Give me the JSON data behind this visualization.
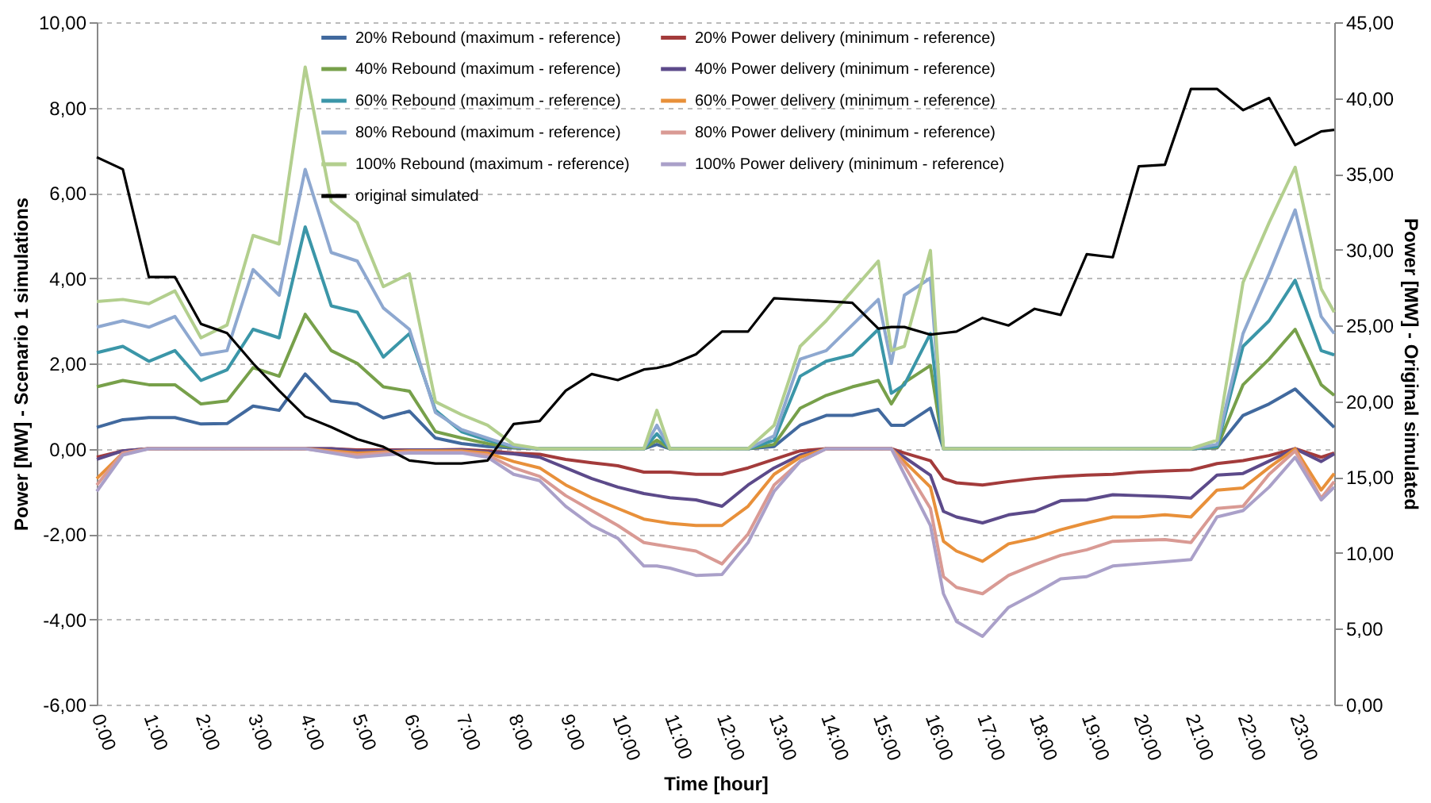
{
  "chart_data": {
    "type": "line",
    "xlabel": "Time [hour]",
    "ylabel": "Power [MW] - Scenario 1 simulations",
    "y2label": "Power [MW] - Original simulated",
    "x": [
      0,
      0.5,
      1,
      1.5,
      2,
      2.5,
      3,
      3.5,
      4,
      4.5,
      5,
      5.5,
      6,
      6.5,
      7,
      7.5,
      8,
      8.5,
      9,
      9.5,
      10,
      10.5,
      10.75,
      11,
      11.5,
      12,
      12.5,
      13,
      13.5,
      14,
      14.5,
      15,
      15.25,
      15.5,
      16,
      16.25,
      16.5,
      17,
      17.5,
      18,
      18.5,
      19,
      19.5,
      20,
      20.5,
      21,
      21.5,
      22,
      22.5,
      23,
      23.5,
      23.75
    ],
    "series": [
      {
        "name": "20% Rebound (maximum - reference)",
        "color": "#41699e",
        "values": [
          0.5,
          0.68,
          0.73,
          0.73,
          0.58,
          0.59,
          1.0,
          0.9,
          1.75,
          1.12,
          1.05,
          0.72,
          0.88,
          0.25,
          0.12,
          0.05,
          0.02,
          0,
          0,
          0,
          0,
          0,
          0.1,
          0,
          0,
          0,
          0,
          0.05,
          0.55,
          0.78,
          0.78,
          0.92,
          0.55,
          0.55,
          0.95,
          0,
          0,
          0,
          0,
          0,
          0,
          0,
          0,
          0,
          0,
          0,
          0.02,
          0.78,
          1.05,
          1.4,
          0.8,
          0.5
        ]
      },
      {
        "name": "20% Power delivery (minimum - reference)",
        "color": "#a33b3b",
        "values": [
          -0.2,
          -0.05,
          0,
          0,
          0,
          0,
          0,
          0,
          0,
          0,
          -0.03,
          -0.03,
          -0.03,
          -0.03,
          -0.02,
          -0.05,
          -0.1,
          -0.13,
          -0.25,
          -0.33,
          -0.4,
          -0.55,
          -0.55,
          -0.55,
          -0.6,
          -0.6,
          -0.45,
          -0.25,
          -0.05,
          0,
          0,
          0,
          0,
          -0.1,
          -0.28,
          -0.7,
          -0.8,
          -0.85,
          -0.77,
          -0.7,
          -0.65,
          -0.62,
          -0.6,
          -0.55,
          -0.52,
          -0.5,
          -0.35,
          -0.28,
          -0.16,
          0,
          -0.2,
          -0.1
        ]
      },
      {
        "name": "40% Rebound (maximum - reference)",
        "color": "#77a04a",
        "values": [
          1.45,
          1.6,
          1.5,
          1.5,
          1.05,
          1.12,
          1.9,
          1.7,
          3.15,
          2.3,
          2.0,
          1.45,
          1.35,
          0.4,
          0.25,
          0.12,
          0.03,
          0,
          0,
          0,
          0,
          0,
          0.2,
          0,
          0,
          0,
          0,
          0.1,
          0.95,
          1.25,
          1.45,
          1.6,
          1.05,
          1.55,
          1.95,
          0,
          0,
          0,
          0,
          0,
          0,
          0,
          0,
          0,
          0,
          0,
          0.03,
          1.5,
          2.1,
          2.8,
          1.5,
          1.25
        ]
      },
      {
        "name": "40% Power delivery (minimum - reference)",
        "color": "#5c4a8a",
        "values": [
          -0.25,
          -0.05,
          0,
          0,
          0,
          0,
          0,
          0,
          0,
          0,
          -0.05,
          -0.05,
          -0.03,
          -0.03,
          -0.03,
          -0.08,
          -0.12,
          -0.2,
          -0.45,
          -0.7,
          -0.9,
          -1.05,
          -1.1,
          -1.15,
          -1.2,
          -1.35,
          -0.85,
          -0.45,
          -0.15,
          0,
          0,
          0,
          0,
          -0.2,
          -0.62,
          -1.47,
          -1.6,
          -1.74,
          -1.55,
          -1.47,
          -1.22,
          -1.2,
          -1.08,
          -1.1,
          -1.12,
          -1.16,
          -0.62,
          -0.58,
          -0.29,
          0,
          -0.3,
          -0.12
        ]
      },
      {
        "name": "60% Rebound (maximum - reference)",
        "color": "#3b96a8",
        "values": [
          2.25,
          2.4,
          2.05,
          2.3,
          1.6,
          1.85,
          2.8,
          2.6,
          5.2,
          3.35,
          3.2,
          2.15,
          2.7,
          0.9,
          0.4,
          0.2,
          0.05,
          0,
          0,
          0,
          0,
          0,
          0.35,
          0,
          0,
          0,
          0,
          0.2,
          1.7,
          2.05,
          2.2,
          2.8,
          1.3,
          1.5,
          2.7,
          0,
          0,
          0,
          0,
          0,
          0,
          0,
          0,
          0,
          0,
          0,
          0.05,
          2.4,
          3.0,
          3.95,
          2.3,
          2.2
        ]
      },
      {
        "name": "60% Power delivery (minimum - reference)",
        "color": "#e8903a",
        "values": [
          -0.7,
          -0.1,
          0,
          0,
          0,
          0,
          0,
          0,
          0,
          -0.05,
          -0.1,
          -0.08,
          -0.05,
          -0.05,
          -0.05,
          -0.1,
          -0.3,
          -0.45,
          -0.85,
          -1.15,
          -1.4,
          -1.65,
          -1.7,
          -1.75,
          -1.8,
          -1.8,
          -1.35,
          -0.6,
          -0.2,
          0,
          0,
          0,
          0,
          -0.3,
          -0.9,
          -2.17,
          -2.4,
          -2.64,
          -2.23,
          -2.1,
          -1.9,
          -1.74,
          -1.6,
          -1.6,
          -1.55,
          -1.6,
          -0.97,
          -0.92,
          -0.44,
          0,
          -0.97,
          -0.58
        ]
      },
      {
        "name": "80% Rebound (maximum - reference)",
        "color": "#8ea8d0",
        "values": [
          2.85,
          3.0,
          2.85,
          3.1,
          2.2,
          2.3,
          4.2,
          3.6,
          6.55,
          4.6,
          4.4,
          3.3,
          2.8,
          0.85,
          0.45,
          0.25,
          0.05,
          0,
          0,
          0,
          0,
          0,
          0.55,
          0,
          0,
          0,
          0,
          0.3,
          2.1,
          2.3,
          2.9,
          3.5,
          2.0,
          3.6,
          4.0,
          0,
          0,
          0,
          0,
          0,
          0,
          0,
          0,
          0,
          0,
          0,
          0.1,
          2.7,
          4.1,
          5.6,
          3.1,
          2.7
        ]
      },
      {
        "name": "80% Power delivery (minimum - reference)",
        "color": "#d99a94",
        "values": [
          -0.85,
          -0.1,
          0,
          0,
          0,
          0,
          0,
          0,
          0,
          -0.08,
          -0.15,
          -0.1,
          -0.08,
          -0.08,
          -0.08,
          -0.15,
          -0.45,
          -0.65,
          -1.1,
          -1.45,
          -1.8,
          -2.2,
          -2.25,
          -2.3,
          -2.4,
          -2.7,
          -2.0,
          -0.85,
          -0.3,
          0,
          0,
          0,
          0,
          -0.4,
          -1.4,
          -3.0,
          -3.25,
          -3.4,
          -2.97,
          -2.72,
          -2.5,
          -2.37,
          -2.17,
          -2.15,
          -2.13,
          -2.2,
          -1.4,
          -1.35,
          -0.6,
          -0.05,
          -1.16,
          -0.77
        ]
      },
      {
        "name": "100% Rebound (maximum - reference)",
        "color": "#b3cf8e",
        "values": [
          3.45,
          3.5,
          3.4,
          3.7,
          2.6,
          2.9,
          5.0,
          4.8,
          8.95,
          5.8,
          5.3,
          3.8,
          4.1,
          1.1,
          0.8,
          0.55,
          0.1,
          0,
          0,
          0,
          0,
          0,
          0.9,
          0,
          0,
          0,
          0,
          0.55,
          2.4,
          3.0,
          3.7,
          4.4,
          2.3,
          2.4,
          4.65,
          0,
          0,
          0,
          0,
          0,
          0,
          0,
          0,
          0,
          0,
          0,
          0.2,
          3.9,
          5.3,
          6.6,
          3.75,
          3.2
        ]
      },
      {
        "name": "100% Power delivery (minimum - reference)",
        "color": "#aaa0c9",
        "values": [
          -1.0,
          -0.15,
          0,
          0,
          0,
          0,
          0,
          0,
          0,
          -0.1,
          -0.2,
          -0.15,
          -0.1,
          -0.1,
          -0.1,
          -0.2,
          -0.6,
          -0.75,
          -1.35,
          -1.8,
          -2.1,
          -2.75,
          -2.75,
          -2.8,
          -2.97,
          -2.95,
          -2.2,
          -1.0,
          -0.3,
          0,
          0,
          0,
          0,
          -0.6,
          -1.8,
          -3.4,
          -4.05,
          -4.4,
          -3.72,
          -3.4,
          -3.05,
          -3.0,
          -2.75,
          -2.7,
          -2.65,
          -2.6,
          -1.6,
          -1.45,
          -0.9,
          -0.2,
          -1.2,
          -0.9
        ]
      },
      {
        "name": "original simulated",
        "color": "#000000",
        "axis": "y2",
        "values": [
          36.1,
          35.3,
          28.2,
          28.2,
          25.1,
          24.5,
          22.5,
          20.7,
          19.0,
          18.3,
          17.5,
          17.0,
          16.1,
          15.9,
          15.9,
          16.1,
          18.5,
          18.7,
          20.7,
          21.8,
          21.4,
          22.1,
          22.2,
          22.4,
          23.1,
          24.6,
          24.6,
          26.8,
          26.7,
          26.6,
          26.5,
          24.8,
          24.9,
          24.9,
          24.4,
          24.5,
          24.6,
          25.5,
          25.0,
          26.1,
          25.7,
          29.7,
          29.5,
          35.5,
          35.6,
          40.6,
          40.6,
          39.2,
          40.0,
          36.9,
          37.8,
          37.9
        ]
      }
    ],
    "xlim": [
      0,
      23.75
    ],
    "xticks": [
      {
        "value": 0,
        "label": "0:00"
      },
      {
        "value": 1,
        "label": "1:00"
      },
      {
        "value": 2,
        "label": "2:00"
      },
      {
        "value": 3,
        "label": "3:00"
      },
      {
        "value": 4,
        "label": "4:00"
      },
      {
        "value": 5,
        "label": "5:00"
      },
      {
        "value": 6,
        "label": "6:00"
      },
      {
        "value": 7,
        "label": "7:00"
      },
      {
        "value": 8,
        "label": "8:00"
      },
      {
        "value": 9,
        "label": "9:00"
      },
      {
        "value": 10,
        "label": "10:00"
      },
      {
        "value": 11,
        "label": "11:00"
      },
      {
        "value": 12,
        "label": "12:00"
      },
      {
        "value": 13,
        "label": "13:00"
      },
      {
        "value": 14,
        "label": "14:00"
      },
      {
        "value": 15,
        "label": "15:00"
      },
      {
        "value": 16,
        "label": "16:00"
      },
      {
        "value": 17,
        "label": "17:00"
      },
      {
        "value": 18,
        "label": "18:00"
      },
      {
        "value": 19,
        "label": "19:00"
      },
      {
        "value": 20,
        "label": "20:00"
      },
      {
        "value": 21,
        "label": "21:00"
      },
      {
        "value": 22,
        "label": "22:00"
      },
      {
        "value": 23,
        "label": "23:00"
      }
    ],
    "ylim": [
      -6,
      10
    ],
    "yticks": [
      {
        "value": -6,
        "label": "-6,00"
      },
      {
        "value": -4,
        "label": "-4,00"
      },
      {
        "value": -2,
        "label": "-2,00"
      },
      {
        "value": 0,
        "label": "0,00"
      },
      {
        "value": 2,
        "label": "2,00"
      },
      {
        "value": 4,
        "label": "4,00"
      },
      {
        "value": 6,
        "label": "6,00"
      },
      {
        "value": 8,
        "label": "8,00"
      },
      {
        "value": 10,
        "label": "10,00"
      }
    ],
    "y2lim": [
      0,
      45
    ],
    "y2ticks": [
      {
        "value": 0,
        "label": "0,00"
      },
      {
        "value": 5,
        "label": "5,00"
      },
      {
        "value": 10,
        "label": "10,00"
      },
      {
        "value": 15,
        "label": "15,00"
      },
      {
        "value": 20,
        "label": "20,00"
      },
      {
        "value": 25,
        "label": "25,00"
      },
      {
        "value": 30,
        "label": "30,00"
      },
      {
        "value": 35,
        "label": "35,00"
      },
      {
        "value": 40,
        "label": "40,00"
      },
      {
        "value": 45,
        "label": "45,00"
      }
    ],
    "grid": "y",
    "legend": "top"
  }
}
